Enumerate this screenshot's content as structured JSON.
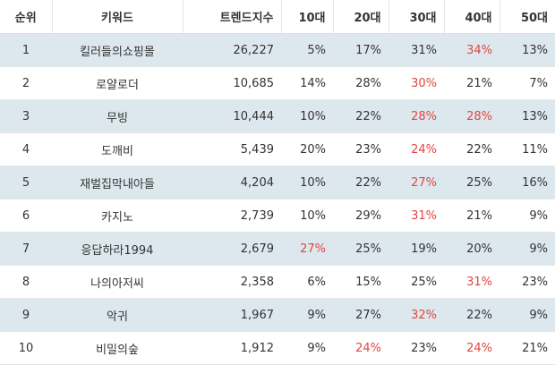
{
  "table": {
    "headers": {
      "rank": "순위",
      "keyword": "키워드",
      "trend_index": "트렌드지수",
      "age10": "10대",
      "age20": "20대",
      "age30": "30대",
      "age40": "40대",
      "age50": "50대"
    },
    "highlight_color": "#e0463e",
    "row_alt_color": "#dde8ee",
    "rows": [
      {
        "rank": "1",
        "keyword": "킬러들의쇼핑몰",
        "trend_index": "26,227",
        "age10": "5%",
        "age20": "17%",
        "age30": "31%",
        "age40": "34%",
        "age50": "13%",
        "highlight": "age40"
      },
      {
        "rank": "2",
        "keyword": "로얄로더",
        "trend_index": "10,685",
        "age10": "14%",
        "age20": "28%",
        "age30": "30%",
        "age40": "21%",
        "age50": "7%",
        "highlight": "age30"
      },
      {
        "rank": "3",
        "keyword": "무빙",
        "trend_index": "10,444",
        "age10": "10%",
        "age20": "22%",
        "age30": "28%",
        "age40": "28%",
        "age50": "13%",
        "highlight": "age30,age40"
      },
      {
        "rank": "4",
        "keyword": "도깨비",
        "trend_index": "5,439",
        "age10": "20%",
        "age20": "23%",
        "age30": "24%",
        "age40": "22%",
        "age50": "11%",
        "highlight": "age30"
      },
      {
        "rank": "5",
        "keyword": "재벌집막내아들",
        "trend_index": "4,204",
        "age10": "10%",
        "age20": "22%",
        "age30": "27%",
        "age40": "25%",
        "age50": "16%",
        "highlight": "age30"
      },
      {
        "rank": "6",
        "keyword": "카지노",
        "trend_index": "2,739",
        "age10": "10%",
        "age20": "29%",
        "age30": "31%",
        "age40": "21%",
        "age50": "9%",
        "highlight": "age30"
      },
      {
        "rank": "7",
        "keyword": "응답하라1994",
        "trend_index": "2,679",
        "age10": "27%",
        "age20": "25%",
        "age30": "19%",
        "age40": "20%",
        "age50": "9%",
        "highlight": "age10"
      },
      {
        "rank": "8",
        "keyword": "나의아저씨",
        "trend_index": "2,358",
        "age10": "6%",
        "age20": "15%",
        "age30": "25%",
        "age40": "31%",
        "age50": "23%",
        "highlight": "age40"
      },
      {
        "rank": "9",
        "keyword": "악귀",
        "trend_index": "1,967",
        "age10": "9%",
        "age20": "27%",
        "age30": "32%",
        "age40": "22%",
        "age50": "9%",
        "highlight": "age30"
      },
      {
        "rank": "10",
        "keyword": "비밀의숲",
        "trend_index": "1,912",
        "age10": "9%",
        "age20": "24%",
        "age30": "23%",
        "age40": "24%",
        "age50": "21%",
        "highlight": "age20,age40"
      }
    ]
  }
}
